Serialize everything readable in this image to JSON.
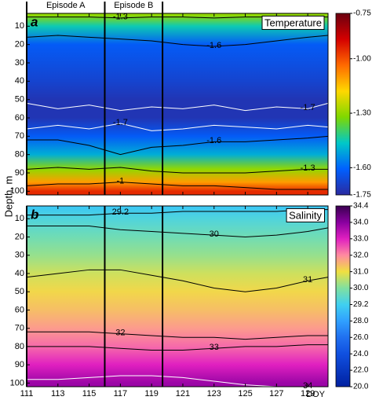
{
  "chart_data": [
    {
      "type": "heatmap",
      "panel_label": "a",
      "title": "Temperature",
      "episodes": [
        {
          "label": "Episode A",
          "start": 111,
          "end": 116
        },
        {
          "label": "Episode B",
          "start": 116,
          "end": 119.7
        }
      ],
      "xlim": [
        111,
        130.3
      ],
      "xticks": [
        111,
        113,
        115,
        117,
        119,
        121,
        123,
        125,
        127,
        129
      ],
      "ylim": [
        3,
        102
      ],
      "yticks": [
        10,
        20,
        30,
        40,
        50,
        60,
        70,
        80,
        90,
        100
      ],
      "y_inverted": true,
      "depths": [
        4,
        10,
        20,
        30,
        40,
        50,
        60,
        70,
        80,
        88,
        95,
        100
      ],
      "profile": [
        -1.3,
        -1.45,
        -1.62,
        -1.65,
        -1.68,
        -1.72,
        -1.72,
        -1.62,
        -1.5,
        -1.3,
        -1.1,
        -0.95
      ],
      "clim": [
        -0.75,
        -1.75
      ],
      "colorbar_scale": "linear",
      "cticks": [
        -0.75,
        {
          "value": -1.0,
          "label": "-1.00"
        },
        {
          "value": -1.3,
          "label": "-1.30"
        },
        {
          "value": -1.6,
          "label": "-1.60"
        },
        -1.75
      ],
      "colormap": [
        "#6b0010",
        "#d40000",
        "#ff6a00",
        "#ffd800",
        "#7fd800",
        "#00c8c8",
        "#0060ff",
        "#2a2aa0"
      ],
      "contour_x": [
        111,
        113,
        115,
        117,
        119,
        121,
        123,
        125,
        127,
        129,
        130.3
      ],
      "contours": [
        {
          "label": "-1.3",
          "color": "#000000",
          "depths": [
            5,
            5,
            5,
            5.5,
            5,
            5,
            5.5,
            5,
            5,
            5,
            5
          ]
        },
        {
          "label": "-1.6",
          "color": "#000000",
          "depths": [
            16,
            15,
            16,
            17,
            18,
            20,
            21,
            20,
            18,
            16,
            15
          ]
        },
        {
          "label": "-1.7",
          "color": "#ffffff",
          "depths": [
            52,
            55,
            53,
            56,
            54,
            55,
            53,
            56,
            54,
            55,
            52
          ]
        },
        {
          "label": "-1.7",
          "color": "#ffffff",
          "depths": [
            66,
            64,
            66,
            63,
            67,
            66,
            64,
            65,
            66,
            64,
            65
          ]
        },
        {
          "label": "-1.6",
          "color": "#000000",
          "depths": [
            72,
            72,
            75,
            80,
            76,
            75,
            73,
            73,
            72,
            71,
            70
          ]
        },
        {
          "label": "-1.3",
          "color": "#000000",
          "depths": [
            88,
            87,
            88,
            87,
            89,
            90,
            90,
            90,
            89,
            88,
            88
          ]
        },
        {
          "label": "-1",
          "color": "#000000",
          "depths": [
            97,
            96,
            96,
            95,
            96,
            97,
            97,
            98,
            99,
            99,
            99
          ]
        }
      ]
    },
    {
      "type": "heatmap",
      "panel_label": "b",
      "title": "Salinity",
      "xlim": [
        111,
        130.3
      ],
      "xticks": [
        111,
        113,
        115,
        117,
        119,
        121,
        123,
        125,
        127,
        129
      ],
      "x_label": "DOY",
      "ylim": [
        3,
        102
      ],
      "yticks": [
        10,
        20,
        30,
        40,
        50,
        60,
        70,
        80,
        90,
        100
      ],
      "y_inverted": true,
      "y_label": "Depth, m",
      "depths": [
        4,
        10,
        20,
        30,
        40,
        50,
        60,
        70,
        80,
        90,
        100
      ],
      "profile": [
        29.0,
        29.4,
        29.8,
        30.2,
        30.7,
        31.1,
        31.4,
        31.8,
        32.3,
        33.0,
        33.8
      ],
      "clim": [
        34.4,
        20
      ],
      "colorbar_scale": "piecewise",
      "cticks": [
        34.4,
        {
          "value": 34,
          "label": "34.0"
        },
        {
          "value": 33,
          "label": "33.0"
        },
        {
          "value": 32,
          "label": "32.0"
        },
        {
          "value": 31,
          "label": "31.0"
        },
        {
          "value": 30,
          "label": "30.0"
        },
        29.2,
        {
          "value": 28,
          "label": "28.0"
        },
        {
          "value": 26,
          "label": "26.0"
        },
        {
          "value": 24,
          "label": "24.0"
        },
        {
          "value": 22,
          "label": "22.0"
        },
        {
          "value": 20,
          "label": "20.0"
        }
      ],
      "colormap": [
        "#3a0050",
        "#8a00a0",
        "#e020c0",
        "#ff8aa0",
        "#f0e040",
        "#80e0a0",
        "#40d0f0",
        "#30a0ff",
        "#2070f0",
        "#1050e0",
        "#0838c0",
        "#0020a0"
      ],
      "contour_x": [
        111,
        113,
        115,
        117,
        119,
        121,
        123,
        125,
        127,
        129,
        130.3
      ],
      "contours": [
        {
          "label": "29.2",
          "color": "#000000",
          "depths": [
            8,
            8,
            8,
            7,
            7,
            6,
            6,
            6,
            6,
            5,
            5
          ]
        },
        {
          "label": "30",
          "color": "#000000",
          "depths": [
            14,
            14,
            14,
            16,
            17,
            18,
            19,
            20,
            19,
            17,
            15
          ]
        },
        {
          "label": "31",
          "color": "#000000",
          "depths": [
            42,
            40,
            38,
            38,
            41,
            44,
            48,
            50,
            48,
            44,
            42
          ]
        },
        {
          "label": "32",
          "color": "#000000",
          "depths": [
            72,
            72,
            72,
            73,
            74,
            75,
            75,
            76,
            75,
            74,
            74
          ]
        },
        {
          "label": "33",
          "color": "#000000",
          "depths": [
            80,
            80,
            80,
            81,
            82,
            82,
            81,
            80,
            80,
            79,
            79
          ]
        },
        {
          "label": "34",
          "color": "#ffffff",
          "depths": [
            98,
            98,
            97,
            96,
            96,
            97,
            99,
            101,
            102,
            102,
            102
          ]
        }
      ]
    }
  ]
}
